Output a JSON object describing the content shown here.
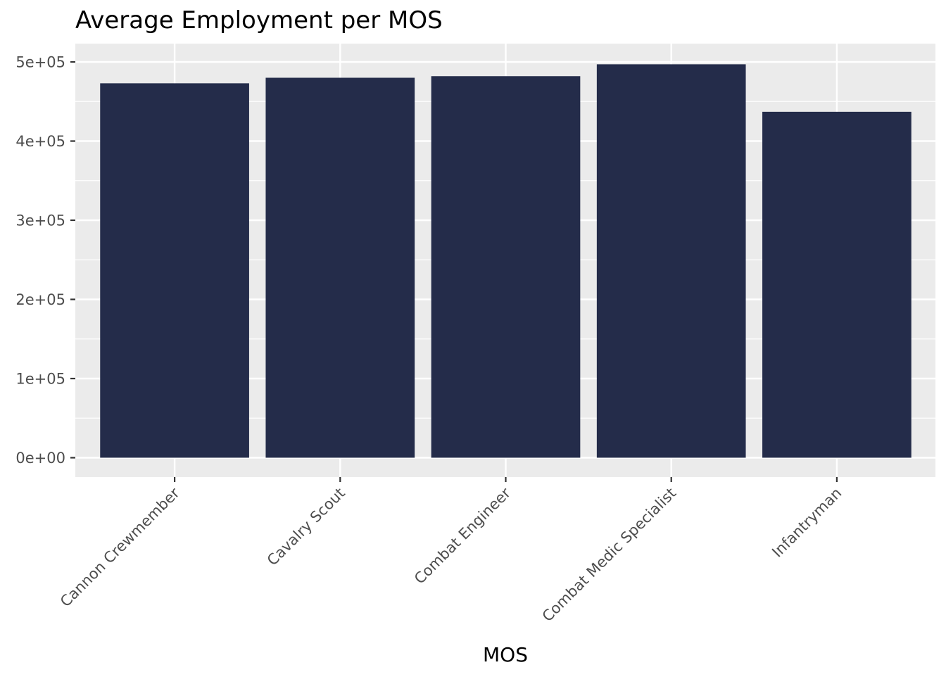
{
  "chart_data": {
    "type": "bar",
    "title": "Average Employment per MOS",
    "xlabel": "MOS",
    "ylabel": "",
    "categories": [
      "Cannon Crewmember",
      "Cavalry Scout",
      "Combat Engineer",
      "Combat Medic Specialist",
      "Infantryman"
    ],
    "values": [
      473000,
      480000,
      482000,
      497000,
      437000
    ],
    "ylim": [
      0,
      520000
    ],
    "yticks": [
      0,
      100000,
      200000,
      300000,
      400000,
      500000
    ],
    "ytick_labels": [
      "0e+00",
      "1e+05",
      "2e+05",
      "3e+05",
      "4e+05",
      "5e+05"
    ],
    "grid": true,
    "legend": "none",
    "colors": {
      "bar": "#242c4a",
      "panel": "#ebebeb",
      "grid": "#ffffff",
      "tick": "#333333"
    }
  }
}
